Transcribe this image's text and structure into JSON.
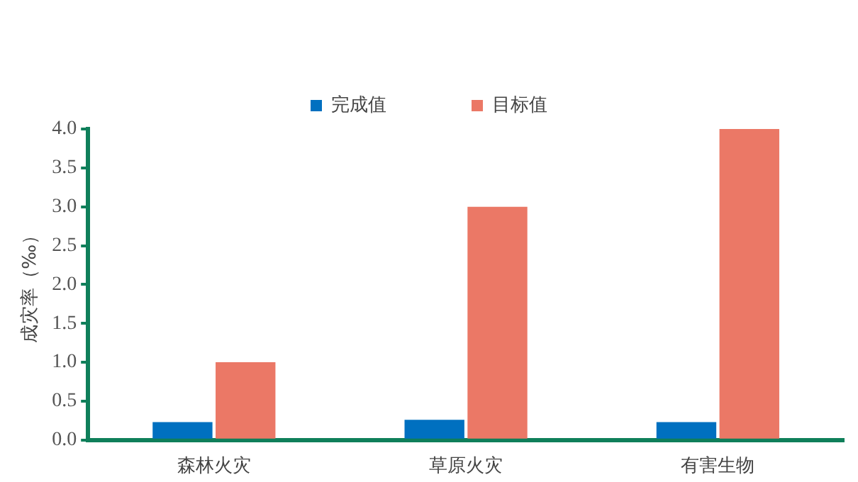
{
  "chart_data": {
    "type": "bar",
    "ylabel": "成灾率（‰）",
    "categories": [
      "森林火灾",
      "草原火灾",
      "有害生物"
    ],
    "series": [
      {
        "name": "完成值",
        "color": "#0070c0",
        "values": [
          0.23,
          0.26,
          0.23
        ]
      },
      {
        "name": "目标值",
        "color": "#eb7866",
        "values": [
          1,
          3,
          4
        ]
      }
    ],
    "ylim": [
      0,
      4
    ],
    "yticks": [
      {
        "value": 0,
        "label": "0.0"
      },
      {
        "value": 0.5,
        "label": "0.5"
      },
      {
        "value": 1,
        "label": "1.0"
      },
      {
        "value": 1.5,
        "label": "1.5"
      },
      {
        "value": 2,
        "label": "2.0"
      },
      {
        "value": 2.5,
        "label": "2.5"
      },
      {
        "value": 3,
        "label": "3.0"
      },
      {
        "value": 3.5,
        "label": "3.5"
      },
      {
        "value": 4,
        "label": "4.0"
      }
    ],
    "grid": false,
    "legend": "top"
  }
}
